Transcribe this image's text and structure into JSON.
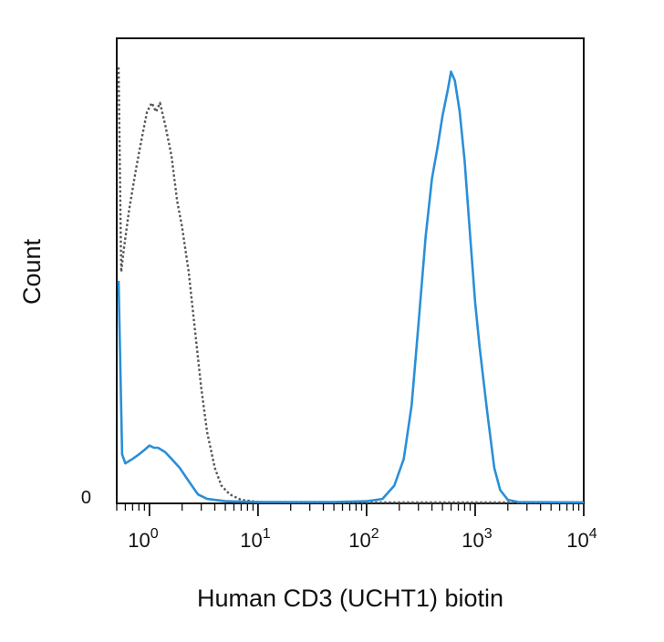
{
  "chart_data": {
    "type": "line",
    "title": "",
    "xlabel": "Human CD3 (UCHT1) biotin",
    "ylabel": "Count",
    "x_scale": "log",
    "xlim": [
      0.5,
      10000
    ],
    "ylim": [
      0,
      100
    ],
    "y_ticks": [
      {
        "value": 0,
        "label": "0"
      }
    ],
    "x_ticks": [
      {
        "value": 1,
        "base": "10",
        "exp": "0"
      },
      {
        "value": 10,
        "base": "10",
        "exp": "1"
      },
      {
        "value": 100,
        "base": "10",
        "exp": "2"
      },
      {
        "value": 1000,
        "base": "10",
        "exp": "3"
      },
      {
        "value": 10000,
        "base": "10",
        "exp": "4"
      }
    ],
    "grid": false,
    "legend": false,
    "series": [
      {
        "style": "dotted",
        "color": "#555555",
        "points": [
          [
            0.52,
            98
          ],
          [
            0.55,
            52
          ],
          [
            0.58,
            57
          ],
          [
            0.65,
            66
          ],
          [
            0.75,
            75
          ],
          [
            0.85,
            82
          ],
          [
            0.95,
            88
          ],
          [
            1.05,
            90
          ],
          [
            1.15,
            88
          ],
          [
            1.25,
            90
          ],
          [
            1.4,
            85
          ],
          [
            1.6,
            78
          ],
          [
            1.8,
            68
          ],
          [
            2.0,
            62
          ],
          [
            2.3,
            52
          ],
          [
            2.6,
            40
          ],
          [
            3.0,
            26
          ],
          [
            3.4,
            16
          ],
          [
            4.0,
            8
          ],
          [
            4.6,
            4
          ],
          [
            5.5,
            2
          ],
          [
            7.0,
            0.8
          ],
          [
            10,
            0.3
          ],
          [
            100,
            0.2
          ],
          [
            1000,
            0.2
          ],
          [
            10000,
            0.2
          ]
        ]
      },
      {
        "style": "solid",
        "color": "#2a8fd8",
        "points": [
          [
            0.52,
            50
          ],
          [
            0.54,
            30
          ],
          [
            0.56,
            11
          ],
          [
            0.6,
            9
          ],
          [
            0.7,
            10
          ],
          [
            0.8,
            11
          ],
          [
            0.9,
            12
          ],
          [
            1.0,
            13
          ],
          [
            1.1,
            12.5
          ],
          [
            1.2,
            12.5
          ],
          [
            1.4,
            11.5
          ],
          [
            1.6,
            10
          ],
          [
            1.9,
            8
          ],
          [
            2.3,
            5
          ],
          [
            2.8,
            2
          ],
          [
            3.4,
            1
          ],
          [
            5,
            0.5
          ],
          [
            10,
            0.3
          ],
          [
            50,
            0.3
          ],
          [
            100,
            0.5
          ],
          [
            140,
            1
          ],
          [
            180,
            4
          ],
          [
            220,
            10
          ],
          [
            260,
            22
          ],
          [
            300,
            40
          ],
          [
            350,
            60
          ],
          [
            400,
            73
          ],
          [
            450,
            80
          ],
          [
            500,
            87
          ],
          [
            560,
            93
          ],
          [
            600,
            97
          ],
          [
            650,
            95
          ],
          [
            720,
            88
          ],
          [
            800,
            77
          ],
          [
            900,
            60
          ],
          [
            1000,
            45
          ],
          [
            1100,
            35
          ],
          [
            1300,
            20
          ],
          [
            1500,
            8
          ],
          [
            1700,
            3
          ],
          [
            2000,
            0.8
          ],
          [
            2500,
            0.3
          ],
          [
            10000,
            0.2
          ]
        ]
      }
    ]
  }
}
